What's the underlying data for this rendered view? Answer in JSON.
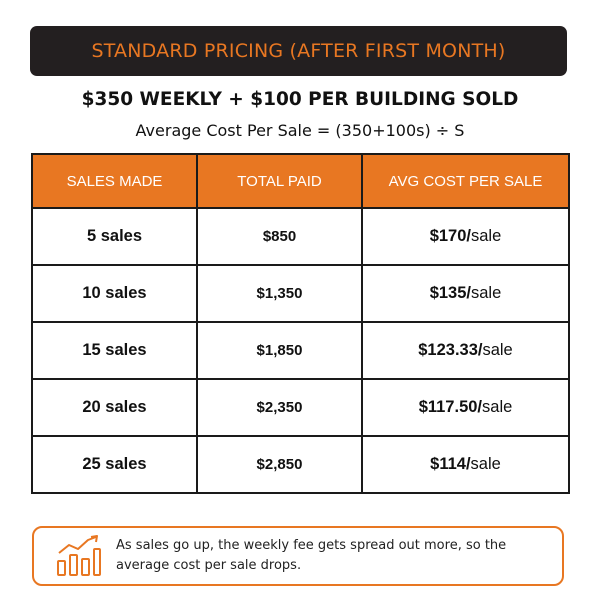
{
  "header": {
    "title": "STANDARD PRICING (AFTER FIRST MONTH)",
    "subtitle": "$350 WEEKLY + $100 PER BUILDING SOLD",
    "formula": "Average Cost Per Sale = (350+100s) ÷ S"
  },
  "table": {
    "columns": [
      "SALES MADE",
      "TOTAL PAID",
      "AVG COST PER SALE"
    ],
    "rows": [
      {
        "sales": "5 sales",
        "total": "$850",
        "avg": "$170/",
        "unit": "sale"
      },
      {
        "sales": "10 sales",
        "total": "$1,350",
        "avg": "$135/",
        "unit": "sale"
      },
      {
        "sales": "15 sales",
        "total": "$1,850",
        "avg": "$123.33/",
        "unit": "sale"
      },
      {
        "sales": "20 sales",
        "total": "$2,350",
        "avg": "$117.50/",
        "unit": "sale"
      },
      {
        "sales": "25 sales",
        "total": "$2,850",
        "avg": "$114/",
        "unit": "sale"
      }
    ]
  },
  "note": {
    "text_line1": "As sales go up, the weekly fee gets spread out more, so the",
    "text_line2": "average cost per sale drops.",
    "icon": "growth-chart-icon"
  },
  "colors": {
    "accent": "#e87722",
    "dark": "#231f20"
  }
}
